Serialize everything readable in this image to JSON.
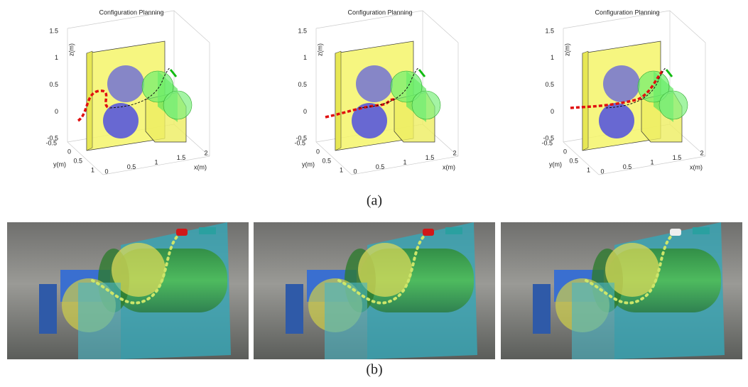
{
  "figure": {
    "panel_a": {
      "label": "(a)",
      "plots": [
        {
          "title": "Configuration Planning",
          "x_label": "x(m)",
          "y_label": "y(m)",
          "z_label": "z(m)",
          "x_ticks": [
            0,
            0.5,
            1,
            1.5,
            2
          ],
          "y_ticks": [
            -0.5,
            0,
            0.5,
            1
          ],
          "z_ticks": [
            1.5,
            1,
            0.5,
            0,
            -0.5
          ]
        },
        {
          "title": "Configuration Planning",
          "x_label": "x(m)",
          "y_label": "y(m)",
          "z_label": "z(m)",
          "x_ticks": [
            0,
            0.5,
            1,
            1.5,
            2
          ],
          "y_ticks": [
            -0.5,
            0,
            0.5,
            1
          ],
          "z_ticks": [
            1.5,
            1,
            0.5,
            0,
            -0.5
          ]
        },
        {
          "title": "Configuration Planning",
          "x_label": "x(m)",
          "y_label": "y(m)",
          "z_label": "z(m)",
          "x_ticks": [
            0,
            0.5,
            1,
            1.5,
            2
          ],
          "y_ticks": [
            -0.5,
            0,
            0.5,
            1
          ],
          "z_ticks": [
            1.5,
            1,
            0.5,
            0,
            -0.5
          ]
        }
      ]
    },
    "panel_b": {
      "label": "(b)"
    }
  }
}
